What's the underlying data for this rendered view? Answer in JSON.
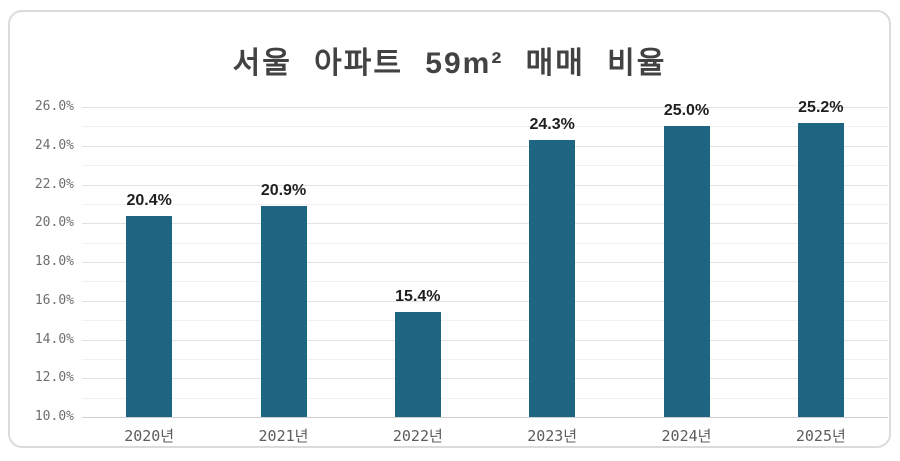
{
  "page": {
    "background": "#ffffff"
  },
  "card": {
    "border_color": "#dbdbdb"
  },
  "chart_data": {
    "type": "bar",
    "title": "서울 아파트 59m² 매매 비율",
    "categories": [
      "2020년",
      "2021년",
      "2022년",
      "2023년",
      "2024년",
      "2025년"
    ],
    "values": [
      20.4,
      20.9,
      15.4,
      24.3,
      25.0,
      25.2
    ],
    "bar_labels": [
      "20.4%",
      "20.9%",
      "15.4%",
      "24.3%",
      "25.0%",
      "25.2%"
    ],
    "xlabel": "",
    "ylabel": "",
    "ylim": [
      10,
      26
    ],
    "y_major_step": 2,
    "y_minor_step": 1,
    "y_tick_labels": [
      "10.0%",
      "12.0%",
      "14.0%",
      "16.0%",
      "18.0%",
      "20.0%",
      "22.0%",
      "24.0%",
      "26.0%"
    ],
    "grid": "horizontal major and minor, no vertical",
    "legend": "none",
    "bar_color": "#1e6582",
    "value_label_color": "#1f1f1f",
    "tick_label_color": "#6e6e6e",
    "title_color": "#424242",
    "gridline_major_color": "#e2e2e2",
    "gridline_minor_color": "#f1f1f1",
    "axis_line_color": "#cfcfcf"
  }
}
